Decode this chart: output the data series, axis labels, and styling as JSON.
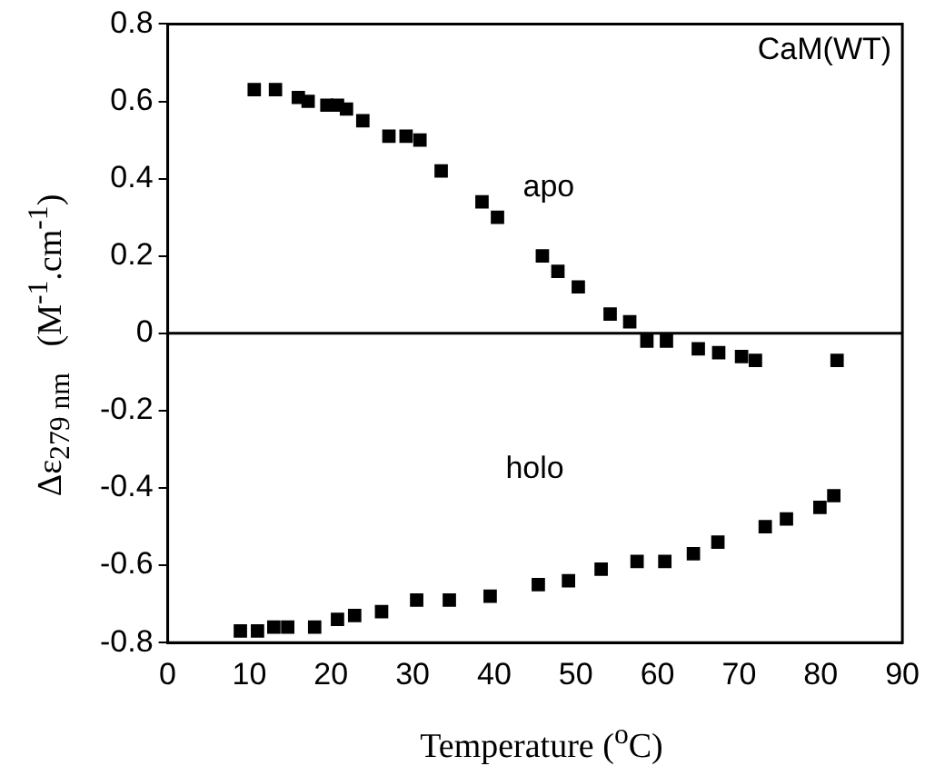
{
  "chart_data": {
    "type": "scatter",
    "xlabel": "Temperature ($^{o}$C)",
    "ylabel": "Δε$_{279 nm}$   (M$^{-1}$.cm$^{-1}$)",
    "series": [
      {
        "name": "apo",
        "color": "#000000",
        "x": [
          10.6,
          13.2,
          16.0,
          17.2,
          19.5,
          20.8,
          21.9,
          23.9,
          27.1,
          29.2,
          30.9,
          33.5,
          38.5,
          40.4,
          45.9,
          47.8,
          50.3,
          54.2,
          56.6,
          58.7,
          61.1,
          65.0,
          67.5,
          70.3,
          72.0,
          82.0
        ],
        "values": [
          0.63,
          0.63,
          0.61,
          0.6,
          0.59,
          0.59,
          0.58,
          0.55,
          0.51,
          0.51,
          0.5,
          0.42,
          0.34,
          0.3,
          0.2,
          0.16,
          0.12,
          0.05,
          0.03,
          -0.02,
          -0.02,
          -0.04,
          -0.05,
          -0.06,
          -0.07,
          -0.07
        ]
      },
      {
        "name": "holo",
        "color": "#000000",
        "x": [
          8.9,
          11.0,
          13.0,
          14.7,
          18.0,
          20.8,
          22.9,
          26.2,
          30.5,
          34.5,
          39.5,
          45.4,
          49.1,
          53.1,
          57.5,
          60.9,
          64.4,
          67.4,
          73.2,
          75.8,
          79.9,
          81.6
        ],
        "values": [
          -0.77,
          -0.77,
          -0.76,
          -0.76,
          -0.76,
          -0.74,
          -0.73,
          -0.72,
          -0.69,
          -0.69,
          -0.68,
          -0.65,
          -0.64,
          -0.61,
          -0.59,
          -0.59,
          -0.57,
          -0.54,
          -0.5,
          -0.48,
          -0.45,
          -0.42
        ]
      }
    ],
    "xlim": [
      0,
      90
    ],
    "xticks": [
      0,
      10,
      20,
      30,
      40,
      50,
      60,
      70,
      80,
      90
    ],
    "ylim": [
      -0.8,
      0.8
    ],
    "yticks": [
      -0.8,
      -0.6,
      -0.4,
      -0.2,
      0,
      0.2,
      0.4,
      0.6,
      0.8
    ],
    "ref_lines": [
      {
        "axis": "y",
        "value": 0,
        "color": "#000000"
      }
    ],
    "annotations": [
      "CaM(WT)"
    ],
    "marker": "square",
    "grid": false,
    "legend": false
  }
}
